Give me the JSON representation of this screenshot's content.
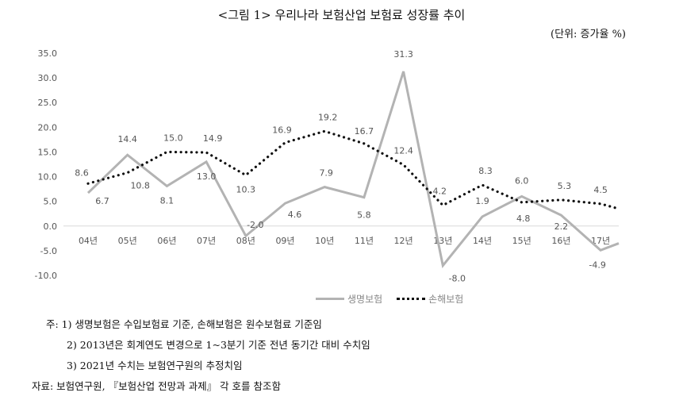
{
  "title": "<그림 1> 우리나라 보험산업 보험료 성장률 추이",
  "unit": "(단위: 증가율 %)",
  "chart_data": {
    "type": "line",
    "title": "<그림 1> 우리나라 보험산업 보험료 성장률 추이",
    "xlabel": "",
    "ylabel": "증가율 %",
    "ylim": [
      -10,
      35
    ],
    "yticks": [
      "35.0",
      "30.0",
      "25.0",
      "20.0",
      "15.0",
      "10.0",
      "5.0",
      "0.0",
      "-5.0",
      "-10.0"
    ],
    "categories": [
      "04년",
      "05년",
      "06년",
      "07년",
      "08년",
      "09년",
      "10년",
      "11년",
      "12년",
      "13년",
      "14년",
      "15년",
      "16년",
      "17년"
    ],
    "series": [
      {
        "name": "생명보험",
        "color": "#b3b3b3",
        "values": [
          6.7,
          14.4,
          8.1,
          13.0,
          -2.0,
          4.6,
          7.9,
          5.8,
          31.3,
          -8.0,
          1.9,
          6.0,
          2.2,
          -4.9
        ],
        "tail": -3.5
      },
      {
        "name": "손해보험",
        "color": "#111111",
        "values": [
          8.6,
          10.8,
          15.0,
          14.9,
          10.3,
          16.9,
          19.2,
          16.7,
          12.4,
          4.2,
          8.3,
          4.8,
          5.3,
          4.5
        ],
        "tail": 3.5
      }
    ],
    "legend": "bottom",
    "grid": false
  },
  "notes": [
    "주: 1) 생명보험은 수입보험료 기준, 손해보험은 원수보험료 기준임",
    "2) 2013년은 회계연도 변경으로 1~3분기 기준 전년 동기간 대비 수치임",
    "3) 2021년 수치는 보험연구원의 추정치임",
    "자료: 보험연구원, 『보험산업 전망과 과제』 각 호를 참조함"
  ]
}
